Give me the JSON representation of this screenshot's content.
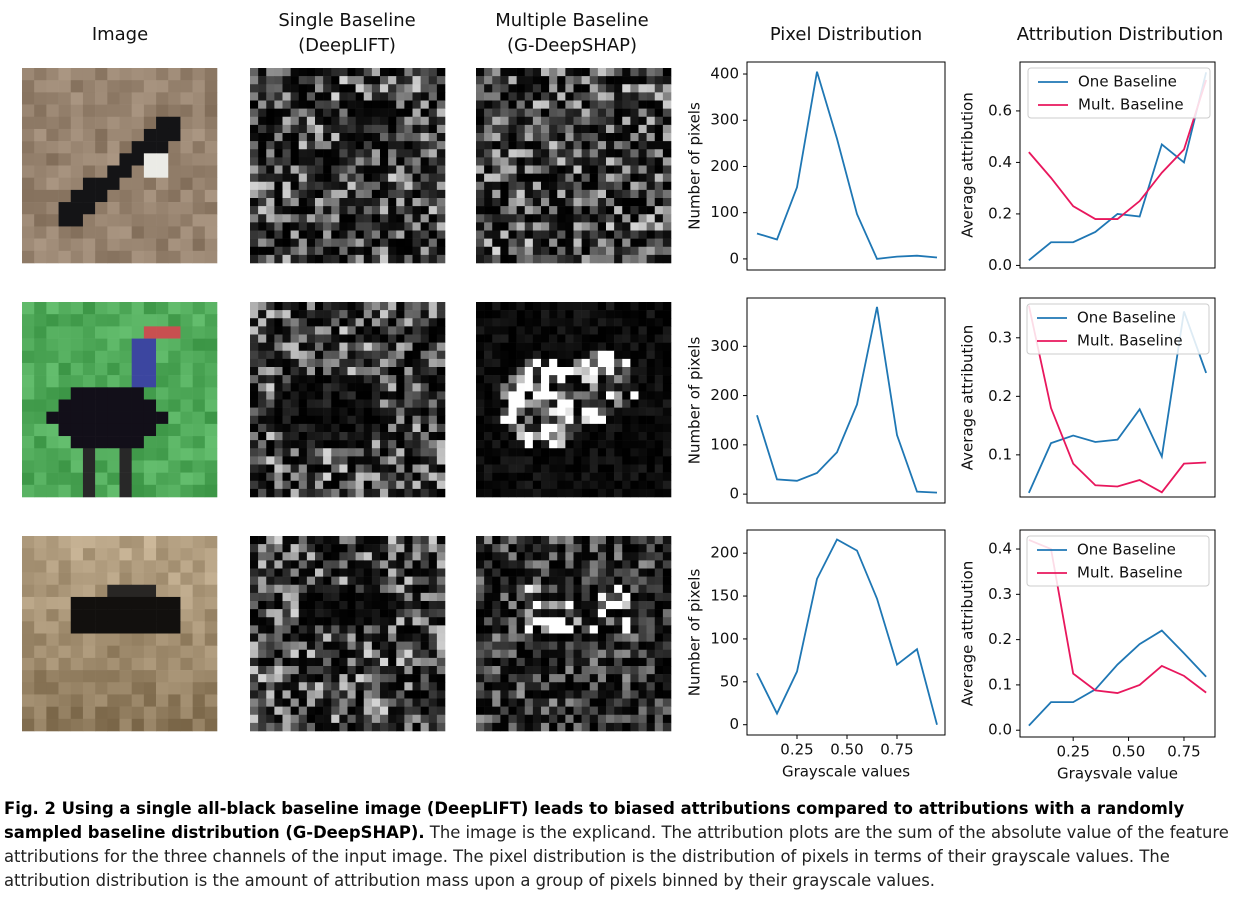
{
  "headers": [
    [
      "Image"
    ],
    [
      "Single Baseline",
      "(DeepLIFT)"
    ],
    [
      "Multiple Baseline",
      "(G-DeepSHAP)"
    ],
    [
      "Pixel Distribution"
    ],
    [
      "Attribution Distribution"
    ]
  ],
  "chart_data": [
    {
      "type": "line",
      "ylabel": "Number of pixels",
      "x": [
        0.05,
        0.15,
        0.25,
        0.35,
        0.45,
        0.55,
        0.65,
        0.75,
        0.85,
        0.95
      ],
      "values": [
        55,
        42,
        155,
        405,
        260,
        97,
        0,
        5,
        7,
        3
      ],
      "color": "#1f77b4",
      "xlim": [
        0,
        0.99
      ],
      "ylim": [
        -24,
        426
      ],
      "yticks": [
        0,
        100,
        200,
        300,
        400
      ]
    },
    {
      "type": "line",
      "ylabel": "Average attribution",
      "x": [
        0.05,
        0.15,
        0.25,
        0.35,
        0.45,
        0.55,
        0.65,
        0.75,
        0.85
      ],
      "series": [
        {
          "name": "One Baseline",
          "color": "#1f77b4",
          "values": [
            0.02,
            0.09,
            0.09,
            0.13,
            0.2,
            0.19,
            0.47,
            0.4,
            0.75
          ]
        },
        {
          "name": "Mult. Baseline",
          "color": "#e8175d",
          "values": [
            0.44,
            0.34,
            0.23,
            0.18,
            0.18,
            0.25,
            0.36,
            0.45,
            0.72
          ]
        }
      ],
      "legend": "upper left",
      "xlim": [
        0.01,
        0.89
      ],
      "ylim": [
        -0.01,
        0.79
      ],
      "yticks": [
        {
          "value": 0,
          "label": "0.0"
        },
        0.2,
        0.4,
        0.6
      ]
    },
    {
      "type": "line",
      "ylabel": "Number of pixels",
      "x": [
        0.05,
        0.15,
        0.25,
        0.35,
        0.45,
        0.55,
        0.65,
        0.75,
        0.85,
        0.95
      ],
      "values": [
        160,
        30,
        27,
        43,
        85,
        182,
        380,
        120,
        5,
        3
      ],
      "color": "#1f77b4",
      "xlim": [
        0,
        0.99
      ],
      "ylim": [
        -18,
        398
      ],
      "yticks": [
        0,
        100,
        200,
        300
      ]
    },
    {
      "type": "line",
      "ylabel": "Average attribution",
      "x": [
        0.05,
        0.15,
        0.25,
        0.35,
        0.45,
        0.55,
        0.65,
        0.75,
        0.85
      ],
      "series": [
        {
          "name": "One Baseline",
          "color": "#1f77b4",
          "values": [
            0.035,
            0.12,
            0.133,
            0.122,
            0.126,
            0.178,
            0.097,
            0.345,
            0.24
          ]
        },
        {
          "name": "Mult. Baseline",
          "color": "#e8175d",
          "values": [
            0.355,
            0.18,
            0.085,
            0.048,
            0.046,
            0.057,
            0.036,
            0.085,
            0.087
          ]
        }
      ],
      "legend": "upper right",
      "xlim": [
        0.01,
        0.89
      ],
      "ylim": [
        0.028,
        0.368
      ],
      "yticks": [
        0.1,
        0.2,
        0.3
      ]
    },
    {
      "type": "line",
      "ylabel": "Number of pixels",
      "xlabel": "Grayscale values",
      "x": [
        0.05,
        0.15,
        0.25,
        0.35,
        0.45,
        0.55,
        0.65,
        0.75,
        0.85,
        0.95
      ],
      "values": [
        60,
        13,
        62,
        170,
        216,
        203,
        147,
        70,
        88,
        0
      ],
      "color": "#1f77b4",
      "xlim": [
        0,
        0.99
      ],
      "ylim": [
        -12,
        227
      ],
      "yticks": [
        0,
        50,
        100,
        150,
        200
      ],
      "xticks": [
        0.25,
        {
          "value": 0.5,
          "label": "0.50"
        },
        0.75
      ]
    },
    {
      "type": "line",
      "ylabel": "Average attribution",
      "xlabel": "Graysvale value",
      "x": [
        0.05,
        0.15,
        0.25,
        0.35,
        0.45,
        0.55,
        0.65,
        0.75,
        0.85
      ],
      "series": [
        {
          "name": "One Baseline",
          "color": "#1f77b4",
          "values": [
            0.01,
            0.062,
            0.062,
            0.09,
            0.145,
            0.19,
            0.22,
            0.17,
            0.118
          ]
        },
        {
          "name": "Mult. Baseline",
          "color": "#e8175d",
          "values": [
            0.42,
            0.4,
            0.125,
            0.088,
            0.082,
            0.1,
            0.142,
            0.12,
            0.083
          ]
        }
      ],
      "legend": "upper right",
      "xlim": [
        0.01,
        0.89
      ],
      "ylim": [
        -0.015,
        0.442
      ],
      "yticks": [
        {
          "value": 0,
          "label": "0.0"
        },
        0.1,
        0.2,
        0.3,
        0.4
      ],
      "xticks": [
        0.25,
        {
          "value": 0.5,
          "label": "0.50"
        },
        0.75
      ]
    }
  ],
  "caption": {
    "bold": "Fig. 2 Using a single all-black baseline image (DeepLIFT) leads to biased attributions compared to attributions with a randomly sampled baseline distribution (G-DeepSHAP).",
    "text": " The image is the explicand. The attribution plots are the sum of the absolute value of the feature attributions for the three channels of the input image. The pixel distribution is the distribution of pixels in terms of their grayscale values. The attribution distribution is the amount of attribution mass upon a group of pixels binned by their grayscale values."
  }
}
